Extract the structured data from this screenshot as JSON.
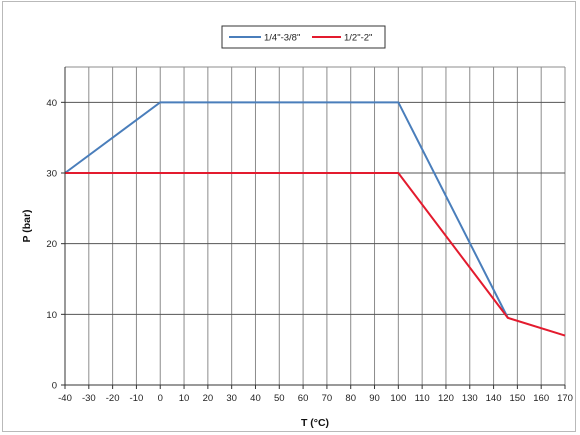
{
  "chart_data": {
    "type": "line",
    "xlabel": "T (°C)",
    "ylabel": "P (bar)",
    "xlim": [
      -40,
      170
    ],
    "ylim": [
      0,
      45
    ],
    "x_ticks": [
      -40,
      -30,
      -20,
      -10,
      0,
      10,
      20,
      30,
      40,
      50,
      60,
      70,
      80,
      90,
      100,
      110,
      120,
      130,
      140,
      150,
      160,
      170
    ],
    "y_ticks": [
      0,
      10,
      20,
      30,
      40
    ],
    "grid": true,
    "legend_position": "top-center",
    "series": [
      {
        "name": "1/4\"-3/8\"",
        "color": "#4a7ebb",
        "x": [
          -40,
          0,
          100,
          146
        ],
        "y": [
          30,
          40,
          40,
          9.5
        ]
      },
      {
        "name": "1/2\"-2\"",
        "color": "#e31b2e",
        "x": [
          -40,
          100,
          146,
          170
        ],
        "y": [
          30,
          30,
          9.5,
          7
        ]
      }
    ]
  }
}
